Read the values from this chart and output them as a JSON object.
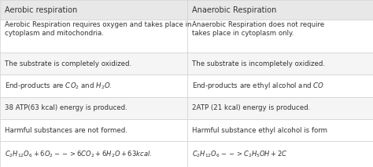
{
  "title_left": "Aerobic respiration",
  "title_right": "Anaerobic Respiration",
  "header_bg": "#e8e8e8",
  "row_bg_white": "#ffffff",
  "row_bg_gray": "#f5f5f5",
  "border_color": "#d0d0d0",
  "text_color": "#333333",
  "col_split": 0.502,
  "figwidth": 4.74,
  "figheight": 2.13,
  "dpi": 100,
  "header_fontsize": 7.0,
  "body_fontsize": 6.2,
  "formula_fontsize": 6.0,
  "rows": [
    {
      "left": "Aerobic Respiration requires oxygen and takes place in\ncytoplasm and mitochondria.",
      "right": "Anaerobic Respiration does not require\ntakes place in cytoplasm only.",
      "bg": "#ffffff",
      "is_formula": false,
      "tall": true
    },
    {
      "left": "The substrate is completely oxidized.",
      "right": "The substrate is incompletely oxidized.",
      "bg": "#f5f5f5",
      "is_formula": false,
      "tall": false
    },
    {
      "left": "End-products are $CO_2$ and $H_2O$.",
      "right": "End-products are ethyl alcohol and $CO$",
      "bg": "#ffffff",
      "is_formula": false,
      "tall": false
    },
    {
      "left": "38 ATP(63 kcal) energy is produced.",
      "right": "2ATP (21 kcal) energy is produced.",
      "bg": "#f5f5f5",
      "is_formula": false,
      "tall": false
    },
    {
      "left": "Harmful substances are not formed.",
      "right": "Harmful substance ethyl alcohol is form",
      "bg": "#ffffff",
      "is_formula": false,
      "tall": false
    },
    {
      "left": "$C_2H_{12}O_6 + 6O_2 --> 6CO_2 + 6H_2O + 63kcal.$",
      "right": "$C_2H_{12}O_6 --> C_2H_5OH + 2C$",
      "bg": "#ffffff",
      "is_formula": true,
      "tall": false
    }
  ]
}
